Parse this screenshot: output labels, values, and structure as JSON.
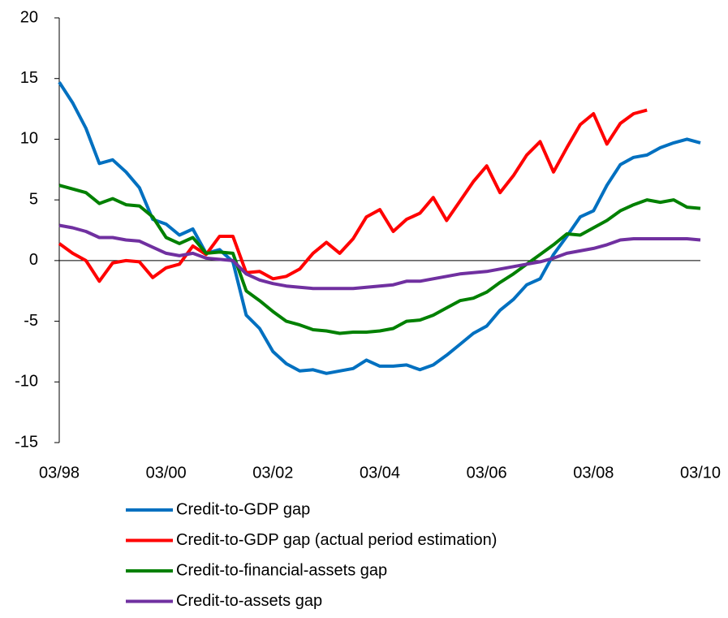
{
  "chart_data": {
    "type": "line",
    "categories": [
      "03/98",
      null,
      null,
      null,
      null,
      null,
      null,
      null,
      "03/00",
      null,
      null,
      null,
      null,
      null,
      null,
      null,
      "03/02",
      null,
      null,
      null,
      null,
      null,
      null,
      null,
      "03/04",
      null,
      null,
      null,
      null,
      null,
      null,
      null,
      "03/06",
      null,
      null,
      null,
      null,
      null,
      null,
      null,
      "03/08",
      null,
      null,
      null,
      null,
      null,
      null,
      null,
      "03/10"
    ],
    "ylim": [
      -15,
      20
    ],
    "yticks": [
      -15,
      -10,
      -5,
      0,
      5,
      10,
      15,
      20
    ],
    "series": [
      {
        "name": "Credit-to-GDP gap",
        "color": "#0070c0",
        "values": [
          14.7,
          13.0,
          10.9,
          8.0,
          8.3,
          7.3,
          6.0,
          3.4,
          3.0,
          2.1,
          2.6,
          0.6,
          0.9,
          -0.1,
          -4.5,
          -5.6,
          -7.5,
          -8.5,
          -9.1,
          -9.0,
          -9.3,
          -9.1,
          -8.9,
          -8.2,
          -8.7,
          -8.7,
          -8.6,
          -9.0,
          -8.6,
          -7.8,
          -6.9,
          -6.0,
          -5.4,
          -4.1,
          -3.2,
          -2.0,
          -1.5,
          0.5,
          2.0,
          3.6,
          4.1,
          6.2,
          7.9,
          8.5,
          8.7,
          9.3,
          9.7,
          10.0,
          9.7
        ]
      },
      {
        "name": "Credit-to-GDP gap (actual period estimation)",
        "color": "#ff0000",
        "values": [
          1.4,
          0.6,
          0.0,
          -1.7,
          -0.2,
          0.0,
          -0.1,
          -1.4,
          -0.6,
          -0.3,
          1.2,
          0.5,
          2.0,
          2.0,
          -1.0,
          -0.9,
          -1.5,
          -1.3,
          -0.7,
          0.6,
          1.5,
          0.6,
          1.8,
          3.6,
          4.2,
          2.4,
          3.4,
          3.9,
          5.2,
          3.3,
          4.9,
          6.5,
          7.8,
          5.6,
          7.0,
          8.7,
          9.8,
          7.3,
          9.3,
          11.2,
          12.1,
          9.6,
          11.3,
          12.1,
          12.4,
          null,
          null,
          null,
          null
        ]
      },
      {
        "name": "Credit-to-financial-assets gap",
        "color": "#008000",
        "values": [
          6.2,
          5.9,
          5.6,
          4.7,
          5.1,
          4.6,
          4.5,
          3.6,
          1.9,
          1.4,
          1.9,
          0.6,
          0.7,
          0.6,
          -2.5,
          -3.3,
          -4.2,
          -5.0,
          -5.3,
          -5.7,
          -5.8,
          -6.0,
          -5.9,
          -5.9,
          -5.8,
          -5.6,
          -5.0,
          -4.9,
          -4.5,
          -3.9,
          -3.3,
          -3.1,
          -2.6,
          -1.8,
          -1.1,
          -0.3,
          0.5,
          1.3,
          2.2,
          2.1,
          2.7,
          3.3,
          4.1,
          4.6,
          5.0,
          4.8,
          5.0,
          4.4,
          4.3
        ]
      },
      {
        "name": "Credit-to-assets gap",
        "color": "#7030a0",
        "values": [
          2.9,
          2.7,
          2.4,
          1.9,
          1.9,
          1.7,
          1.6,
          1.1,
          0.6,
          0.4,
          0.6,
          0.2,
          0.1,
          0.0,
          -1.1,
          -1.6,
          -1.9,
          -2.1,
          -2.2,
          -2.3,
          -2.3,
          -2.3,
          -2.3,
          -2.2,
          -2.1,
          -2.0,
          -1.7,
          -1.7,
          -1.5,
          -1.3,
          -1.1,
          -1.0,
          -0.9,
          -0.7,
          -0.5,
          -0.3,
          -0.1,
          0.2,
          0.6,
          0.8,
          1.0,
          1.3,
          1.7,
          1.8,
          1.8,
          1.8,
          1.8,
          1.8,
          1.7
        ]
      }
    ]
  }
}
